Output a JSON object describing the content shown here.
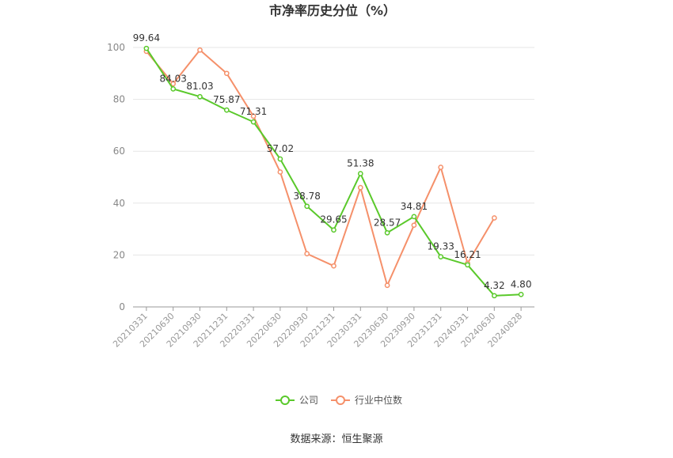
{
  "chart_data": {
    "type": "line",
    "title": "市净率历史分位（%）",
    "source": "数据来源：恒生聚源",
    "categories": [
      "20210331",
      "20210630",
      "20210930",
      "20211231",
      "20220331",
      "20220630",
      "20220930",
      "20221231",
      "20230331",
      "20230630",
      "20230930",
      "20231231",
      "20240331",
      "20240630",
      "20240828"
    ],
    "ylim": [
      0,
      100
    ],
    "yticks": [
      0,
      20,
      40,
      60,
      80,
      100
    ],
    "grid": true,
    "legend_position": "bottom",
    "series": [
      {
        "name": "公司",
        "color": "#5ac92b",
        "values": [
          99.64,
          84.03,
          81.03,
          75.87,
          71.31,
          57.02,
          38.78,
          29.65,
          51.38,
          28.57,
          34.81,
          19.33,
          16.21,
          4.32,
          4.8
        ],
        "labels": [
          "99.64",
          "84.03",
          "81.03",
          "75.87",
          "71.31",
          "57.02",
          "38.78",
          "29.65",
          "51.38",
          "28.57",
          "34.81",
          "19.33",
          "16.21",
          "4.32",
          "4.80"
        ]
      },
      {
        "name": "行业中位数",
        "color": "#f5906a",
        "values": [
          98.5,
          86.0,
          99.0,
          90.0,
          73.5,
          52.0,
          20.5,
          15.8,
          46.0,
          8.3,
          31.5,
          53.8,
          16.8,
          34.3,
          null
        ]
      }
    ]
  }
}
